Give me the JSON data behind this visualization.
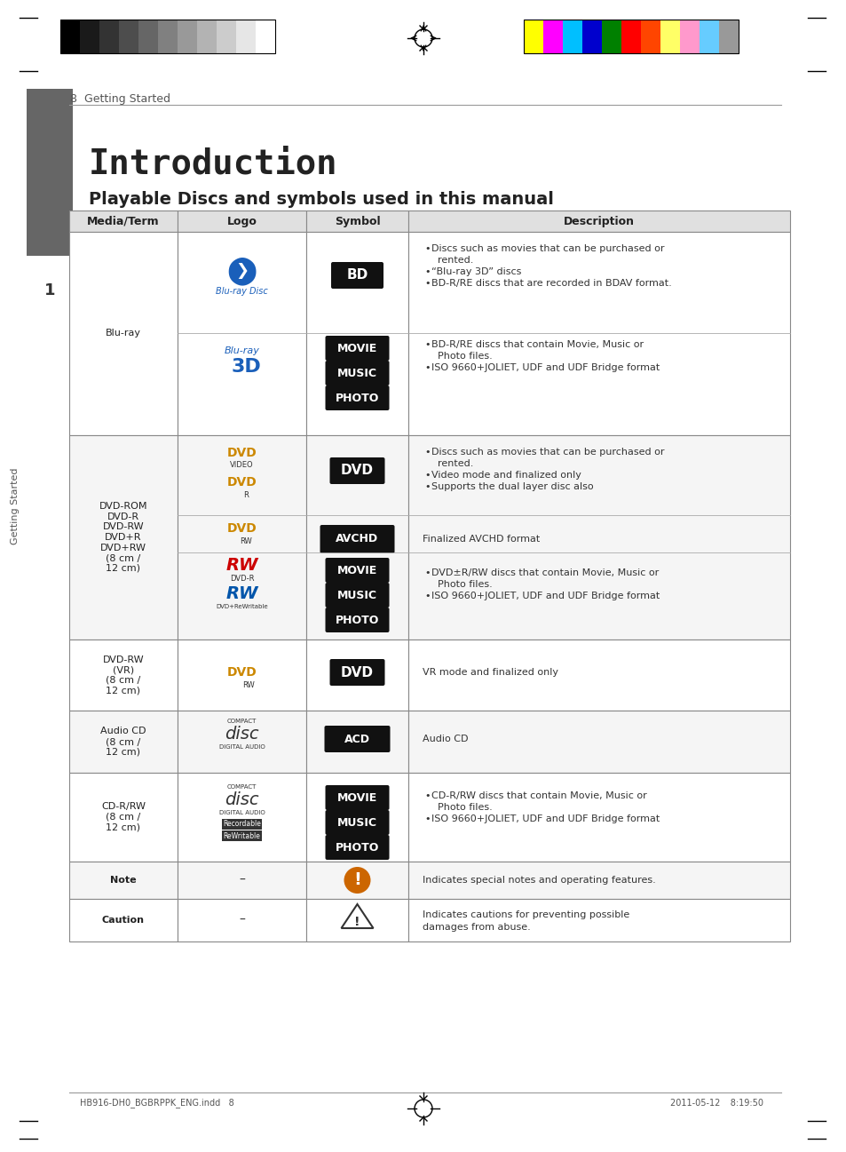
{
  "page_number": "8",
  "section_header": "Getting Started",
  "title": "Introduction",
  "subtitle": "Playable Discs and symbols used in this manual",
  "table_headers": [
    "Media/Term",
    "Logo",
    "Symbol",
    "Description"
  ],
  "bg_color": "#ffffff",
  "header_bg": "#e8e8e8",
  "row_bg_alt": "#f5f5f5",
  "row_bg_white": "#ffffff",
  "border_color": "#aaaaaa",
  "title_color": "#222222",
  "text_color": "#333333",
  "footer_left": "HB916-DH0_BGBRPPK_ENG.indd   8",
  "footer_right": "2011-05-12    8:19:50",
  "sidebar_color": "#666666",
  "sidebar_text": "Getting Started",
  "sidebar_num": "1"
}
